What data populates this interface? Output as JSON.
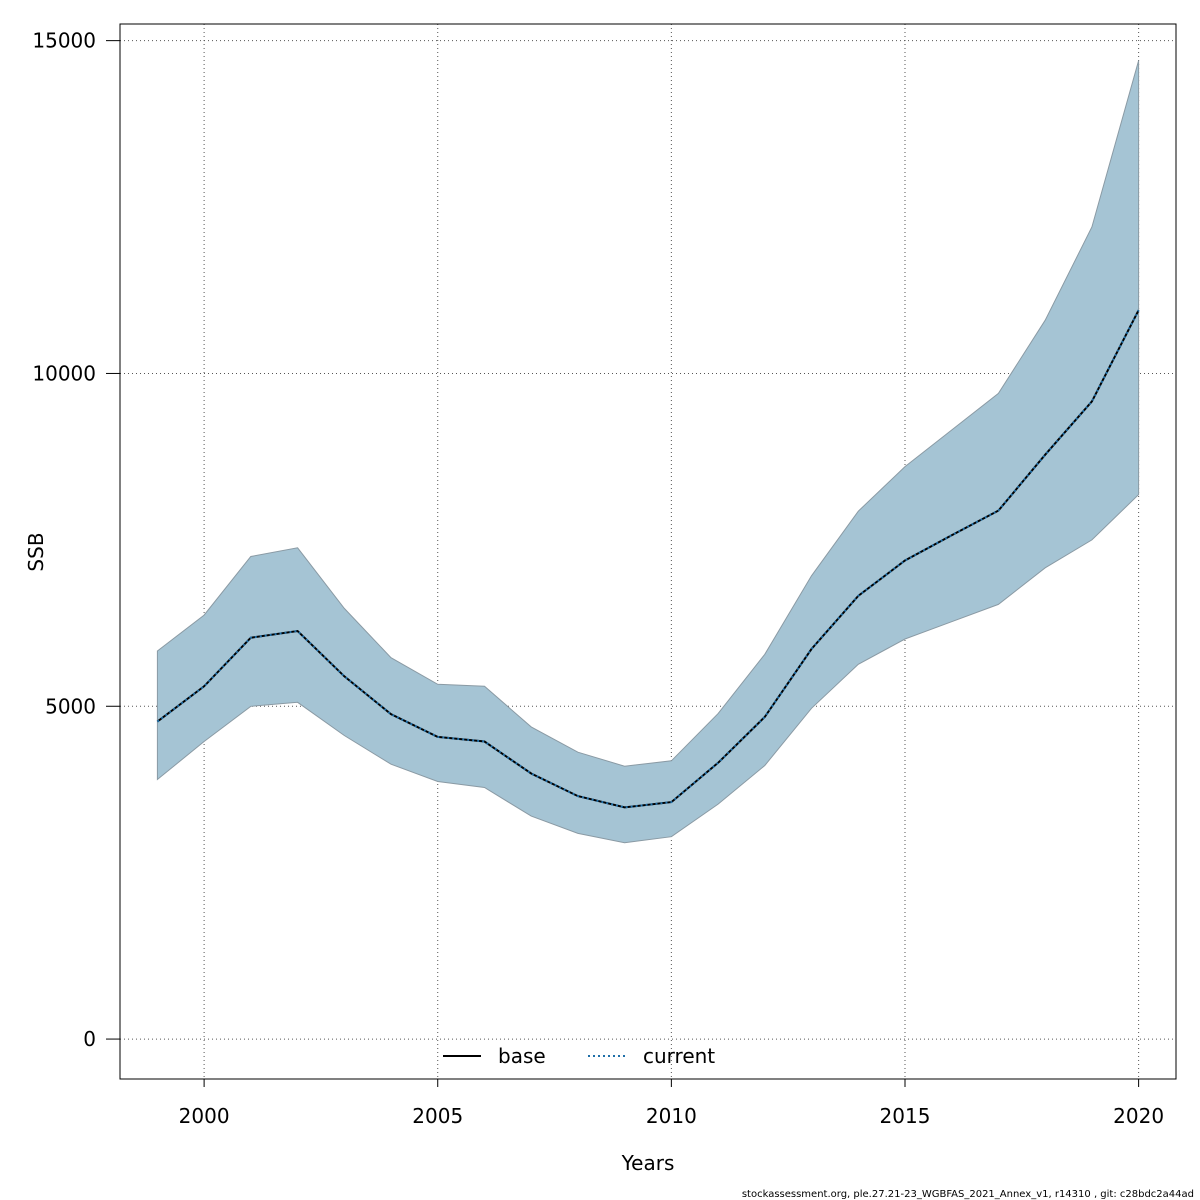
{
  "chart_data": {
    "type": "area",
    "xlabel": "Years",
    "ylabel": "SSB",
    "xlim": [
      1998.2,
      2020.8
    ],
    "ylim": [
      -600,
      15250
    ],
    "xticks": [
      2000,
      2005,
      2010,
      2015,
      2020
    ],
    "yticks": [
      0,
      5000,
      10000,
      15000
    ],
    "grid": true,
    "legend_position": "bottom-center",
    "x": [
      1999,
      2000,
      2001,
      2002,
      2003,
      2004,
      2005,
      2006,
      2007,
      2008,
      2009,
      2010,
      2011,
      2012,
      2013,
      2014,
      2015,
      2016,
      2017,
      2018,
      2019,
      2020
    ],
    "band": {
      "upper": [
        5830,
        6370,
        7250,
        7380,
        6470,
        5730,
        5330,
        5300,
        4690,
        4310,
        4100,
        4180,
        4890,
        5780,
        6960,
        7930,
        8600,
        9150,
        9700,
        10800,
        12200,
        14700
      ],
      "lower": [
        3900,
        4470,
        5000,
        5060,
        4560,
        4130,
        3870,
        3780,
        3350,
        3090,
        2950,
        3040,
        3530,
        4110,
        4970,
        5630,
        6010,
        6270,
        6530,
        7080,
        7500,
        8180
      ],
      "fill_color": "#a5c4d4",
      "edge_color": "#8a9aa4"
    },
    "series": [
      {
        "name": "base",
        "style": "solid",
        "color": "#000000",
        "values": [
          4770,
          5300,
          6030,
          6130,
          5450,
          4880,
          4540,
          4470,
          3990,
          3650,
          3480,
          3560,
          4150,
          4840,
          5860,
          6660,
          7190,
          7570,
          7940,
          8780,
          9580,
          10950
        ]
      },
      {
        "name": "current",
        "style": "dotted",
        "color": "#1f6fa8",
        "values": [
          4770,
          5300,
          6030,
          6130,
          5450,
          4880,
          4540,
          4470,
          3990,
          3650,
          3480,
          3560,
          4150,
          4840,
          5860,
          6660,
          7190,
          7570,
          7940,
          8780,
          9580,
          10950
        ]
      }
    ]
  },
  "footer": "stockassessment.org, ple.27.21-23_WGBFAS_2021_Annex_v1, r14310 , git: c28bdc2a44ad"
}
